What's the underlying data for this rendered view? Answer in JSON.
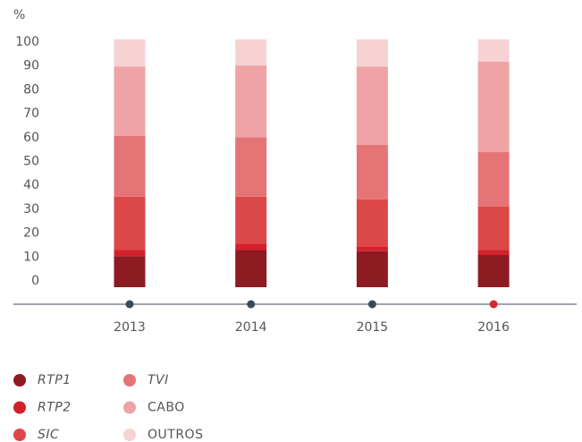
{
  "chart_data": {
    "type": "stacked_bar",
    "y_unit": "%",
    "categories": [
      "2013",
      "2014",
      "2015",
      "2016"
    ],
    "marker_colors": [
      "#3b4a56",
      "#3b4a56",
      "#3b4a56",
      "#d42a30"
    ],
    "series": [
      {
        "name": "RTP1",
        "color": "#8e1a22",
        "values": [
          12.5,
          15,
          14.5,
          13
        ]
      },
      {
        "name": "RTP2",
        "color": "#d4202a",
        "values": [
          2.5,
          2.5,
          2,
          2
        ]
      },
      {
        "name": "SIC",
        "color": "#dc4848",
        "values": [
          21.5,
          19,
          19,
          17.5
        ]
      },
      {
        "name": "TVI",
        "color": "#e57476",
        "values": [
          24.5,
          24,
          22,
          22
        ]
      },
      {
        "name": "CABO",
        "color": "#efa3a5",
        "values": [
          28,
          29,
          31.5,
          36.5
        ]
      },
      {
        "name": "OUTROS",
        "color": "#f7d2d3",
        "values": [
          11,
          10.5,
          11,
          9
        ]
      }
    ],
    "ylim": [
      0,
      100
    ],
    "yticks": [
      0,
      10,
      20,
      30,
      40,
      50,
      60,
      70,
      80,
      90,
      100
    ]
  }
}
